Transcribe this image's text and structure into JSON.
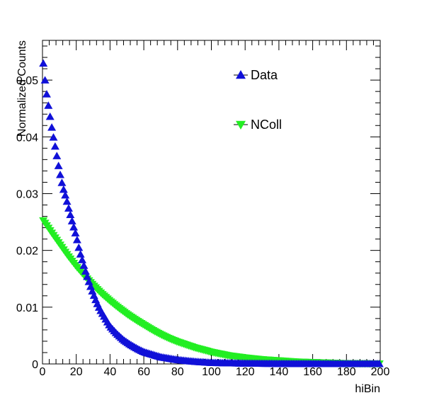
{
  "chart_data": {
    "type": "scatter",
    "title": "",
    "xlabel": "hiBin",
    "ylabel": "Normalized Counts",
    "xlim": [
      0,
      200
    ],
    "ylim": [
      0,
      0.057
    ],
    "x_ticks": [
      0,
      20,
      40,
      60,
      80,
      100,
      120,
      140,
      160,
      180,
      200
    ],
    "y_ticks": [
      0,
      0.01,
      0.02,
      0.03,
      0.04,
      0.05
    ],
    "y_tick_labels": [
      "0",
      "0.01",
      "0.02",
      "0.03",
      "0.04",
      "0.05"
    ],
    "grid": false,
    "legend_position": "top-right",
    "series": [
      {
        "name": "Data",
        "marker": "triangle-up",
        "color": "#1010d8",
        "x": [
          0,
          2,
          4,
          6,
          8,
          10,
          12,
          14,
          16,
          18,
          20,
          22,
          24,
          26,
          28,
          30,
          32,
          34,
          36,
          38,
          40,
          44,
          48,
          52,
          56,
          60,
          70,
          80,
          90,
          100,
          120,
          140,
          160,
          180,
          200
        ],
        "values": [
          0.0544,
          0.0485,
          0.0445,
          0.0407,
          0.0375,
          0.034,
          0.0312,
          0.0292,
          0.0268,
          0.0246,
          0.0225,
          0.0198,
          0.0178,
          0.0158,
          0.014,
          0.0124,
          0.0109,
          0.0096,
          0.0086,
          0.0076,
          0.0066,
          0.0053,
          0.0042,
          0.0034,
          0.0027,
          0.0021,
          0.0012,
          0.0007,
          0.0004,
          0.0002,
          8e-05,
          3e-05,
          1e-05,
          0.0,
          0.0
        ]
      },
      {
        "name": "NColl",
        "marker": "triangle-down",
        "color": "#22ee22",
        "x": [
          0,
          5,
          10,
          15,
          20,
          25,
          30,
          35,
          40,
          45,
          50,
          55,
          60,
          65,
          70,
          75,
          80,
          85,
          90,
          95,
          100,
          110,
          120,
          130,
          140,
          150,
          160,
          170,
          180,
          190,
          200
        ],
        "values": [
          0.0255,
          0.0233,
          0.0212,
          0.0191,
          0.0172,
          0.0155,
          0.0139,
          0.0124,
          0.0111,
          0.0099,
          0.0088,
          0.0078,
          0.0069,
          0.006,
          0.0052,
          0.0045,
          0.0039,
          0.0034,
          0.0029,
          0.0025,
          0.0021,
          0.0015,
          0.0011,
          0.0008,
          0.0006,
          0.0004,
          0.0003,
          0.0002,
          0.0001,
          8e-05,
          5e-05
        ]
      }
    ]
  }
}
